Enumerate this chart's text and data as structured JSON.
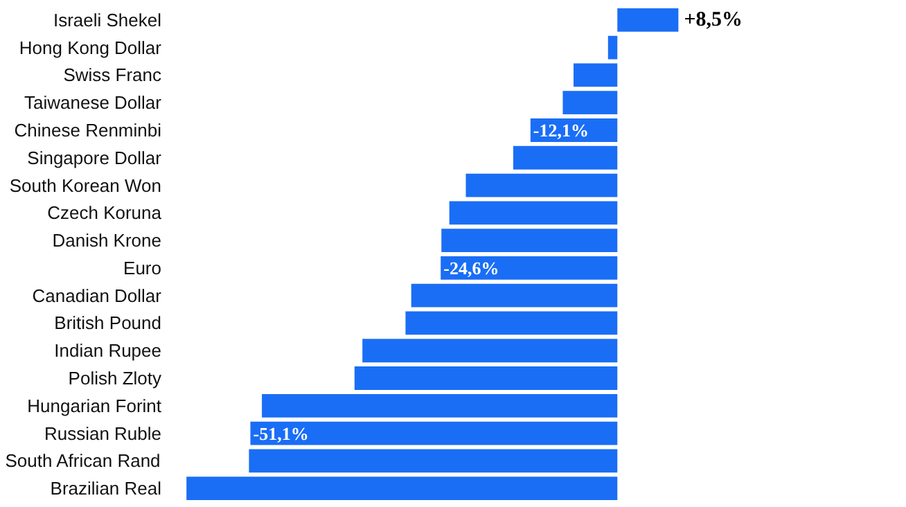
{
  "chart_data": {
    "type": "bar",
    "orientation": "horizontal",
    "tick_labels": "y",
    "grid": false,
    "categories": [
      "Israeli Shekel",
      "Hong Kong Dollar",
      "Swiss Franc",
      "Taiwanese Dollar",
      "Chinese Renminbi",
      "Singapore Dollar",
      "South Korean Won",
      "Czech Koruna",
      "Danish Krone",
      "Euro",
      "Canadian Dollar",
      "British Pound",
      "Indian Rupee",
      "Polish Zloty",
      "Hungarian Forint",
      "Russian Ruble",
      "South African Rand",
      "Brazilian Real"
    ],
    "values": [
      8.5,
      -1.3,
      -6.1,
      -7.6,
      -12.1,
      -14.5,
      -21.1,
      -23.4,
      -24.5,
      -24.6,
      -28.7,
      -29.5,
      -35.5,
      -36.6,
      -49.5,
      -51.1,
      -51.3,
      -60.0
    ],
    "value_labels": [
      "+8,5%",
      null,
      null,
      null,
      "-12,1%",
      null,
      null,
      null,
      null,
      "-24,6%",
      null,
      null,
      null,
      null,
      null,
      "-51,1%",
      null,
      null
    ],
    "color": "#1a6ef5"
  }
}
